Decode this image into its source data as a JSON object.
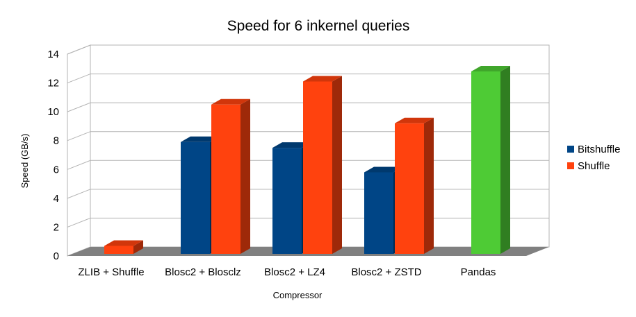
{
  "chart_data": {
    "type": "bar",
    "title": "Speed for 6 inkernel queries",
    "xlabel": "Compressor",
    "ylabel": "Speed (GB/s)",
    "ylim": [
      0,
      14
    ],
    "yticks": [
      "0",
      "2",
      "4",
      "6",
      "8",
      "10",
      "12",
      "14"
    ],
    "categories": [
      "ZLIB + Shuffle",
      "Blosc2 + Blosclz",
      "Blosc2 + LZ4",
      "Blosc2 + ZSTD",
      "Pandas"
    ],
    "series": [
      {
        "name": "Bitshuffle",
        "color": "#004586",
        "values": [
          null,
          7.9,
          7.5,
          5.8,
          null
        ]
      },
      {
        "name": "Shuffle",
        "color": "#ff420e",
        "values": [
          0.7,
          10.5,
          12.1,
          9.2,
          null
        ]
      },
      {
        "name": "",
        "color": "#4ecb35",
        "values": [
          null,
          null,
          null,
          null,
          12.8
        ]
      }
    ],
    "legend": [
      "Bitshuffle",
      "Shuffle"
    ],
    "legend_position": "right",
    "grid": true,
    "style": "3d"
  }
}
